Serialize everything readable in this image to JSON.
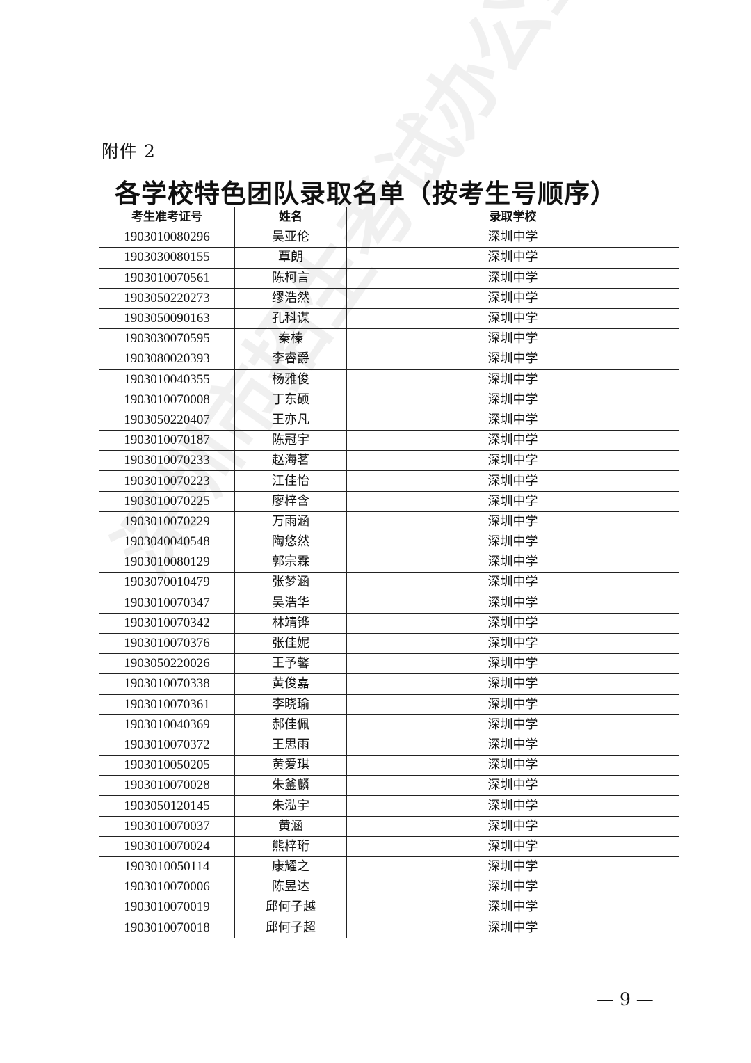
{
  "attachment_label": "附件 2",
  "title": "各学校特色团队录取名单（按考生号顺序）",
  "watermark": "深圳市招生考试办公室",
  "table": {
    "headers": [
      "考生准考证号",
      "姓名",
      "录取学校"
    ],
    "rows": [
      [
        "1903010080296",
        "吴亚伦",
        "深圳中学"
      ],
      [
        "1903030080155",
        "覃朗",
        "深圳中学"
      ],
      [
        "1903010070561",
        "陈柯言",
        "深圳中学"
      ],
      [
        "1903050220273",
        "缪浩然",
        "深圳中学"
      ],
      [
        "1903050090163",
        "孔科谋",
        "深圳中学"
      ],
      [
        "1903030070595",
        "秦榛",
        "深圳中学"
      ],
      [
        "1903080020393",
        "李睿爵",
        "深圳中学"
      ],
      [
        "1903010040355",
        "杨雅俊",
        "深圳中学"
      ],
      [
        "1903010070008",
        "丁东硕",
        "深圳中学"
      ],
      [
        "1903050220407",
        "王亦凡",
        "深圳中学"
      ],
      [
        "1903010070187",
        "陈冠宇",
        "深圳中学"
      ],
      [
        "1903010070233",
        "赵海茗",
        "深圳中学"
      ],
      [
        "1903010070223",
        "江佳怡",
        "深圳中学"
      ],
      [
        "1903010070225",
        "廖梓含",
        "深圳中学"
      ],
      [
        "1903010070229",
        "万雨涵",
        "深圳中学"
      ],
      [
        "1903040040548",
        "陶悠然",
        "深圳中学"
      ],
      [
        "1903010080129",
        "郭宗霖",
        "深圳中学"
      ],
      [
        "1903070010479",
        "张梦涵",
        "深圳中学"
      ],
      [
        "1903010070347",
        "吴浩华",
        "深圳中学"
      ],
      [
        "1903010070342",
        "林靖铧",
        "深圳中学"
      ],
      [
        "1903010070376",
        "张佳妮",
        "深圳中学"
      ],
      [
        "1903050220026",
        "王予馨",
        "深圳中学"
      ],
      [
        "1903010070338",
        "黄俊嘉",
        "深圳中学"
      ],
      [
        "1903010070361",
        "李晓瑜",
        "深圳中学"
      ],
      [
        "1903010040369",
        "郝佳佩",
        "深圳中学"
      ],
      [
        "1903010070372",
        "王思雨",
        "深圳中学"
      ],
      [
        "1903010050205",
        "黄爱琪",
        "深圳中学"
      ],
      [
        "1903010070028",
        "朱釜麟",
        "深圳中学"
      ],
      [
        "1903050120145",
        "朱泓宇",
        "深圳中学"
      ],
      [
        "1903010070037",
        "黄涵",
        "深圳中学"
      ],
      [
        "1903010070024",
        "熊梓珩",
        "深圳中学"
      ],
      [
        "1903010050114",
        "康耀之",
        "深圳中学"
      ],
      [
        "1903010070006",
        "陈昱达",
        "深圳中学"
      ],
      [
        "1903010070019",
        "邱何子越",
        "深圳中学"
      ],
      [
        "1903010070018",
        "邱何子超",
        "深圳中学"
      ]
    ]
  },
  "page_number": "— 9 —"
}
